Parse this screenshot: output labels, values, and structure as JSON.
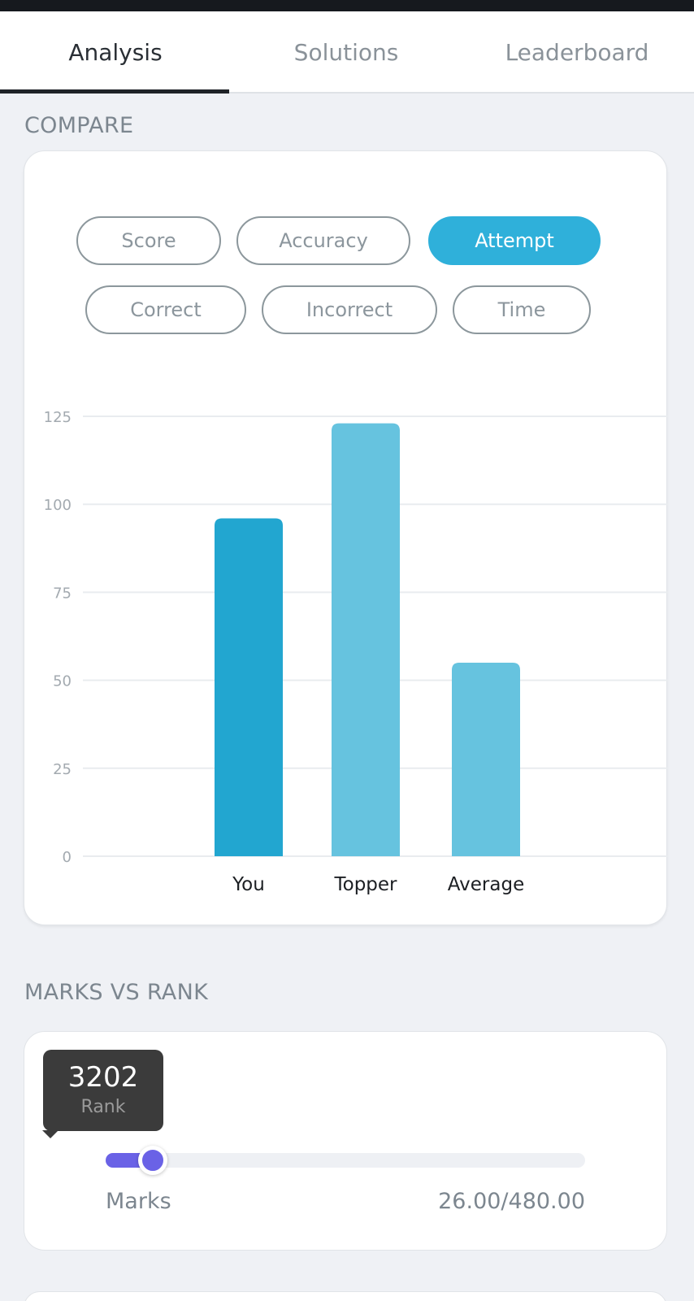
{
  "tabs": [
    {
      "label": "Analysis",
      "active": true
    },
    {
      "label": "Solutions",
      "active": false
    },
    {
      "label": "Leaderboard",
      "active": false
    }
  ],
  "compare": {
    "title": "COMPARE",
    "metrics": [
      {
        "label": "Score",
        "active": false
      },
      {
        "label": "Accuracy",
        "active": false
      },
      {
        "label": "Attempt",
        "active": true
      },
      {
        "label": "Correct",
        "active": false
      },
      {
        "label": "Incorrect",
        "active": false
      },
      {
        "label": "Time",
        "active": false
      }
    ]
  },
  "chart_data": {
    "type": "bar",
    "title": "",
    "xlabel": "",
    "ylabel": "",
    "categories": [
      "You",
      "Topper",
      "Average"
    ],
    "values": [
      96,
      123,
      55
    ],
    "ylim": [
      0,
      125
    ],
    "yticks": [
      0,
      25,
      50,
      75,
      100,
      125
    ],
    "grid": true,
    "colors": [
      "#22a6d0",
      "#66c3df",
      "#66c3df"
    ]
  },
  "marks_vs_rank": {
    "title": "MARKS VS RANK",
    "rank_value": "3202",
    "rank_label": "Rank",
    "marks_label": "Marks",
    "marks_value": "26.00/480.00",
    "marks_fraction": 0.054
  },
  "colors": {
    "accent": "#2fb0da",
    "slider": "#6a62e6",
    "tooltip_bg": "#3b3b3b"
  }
}
